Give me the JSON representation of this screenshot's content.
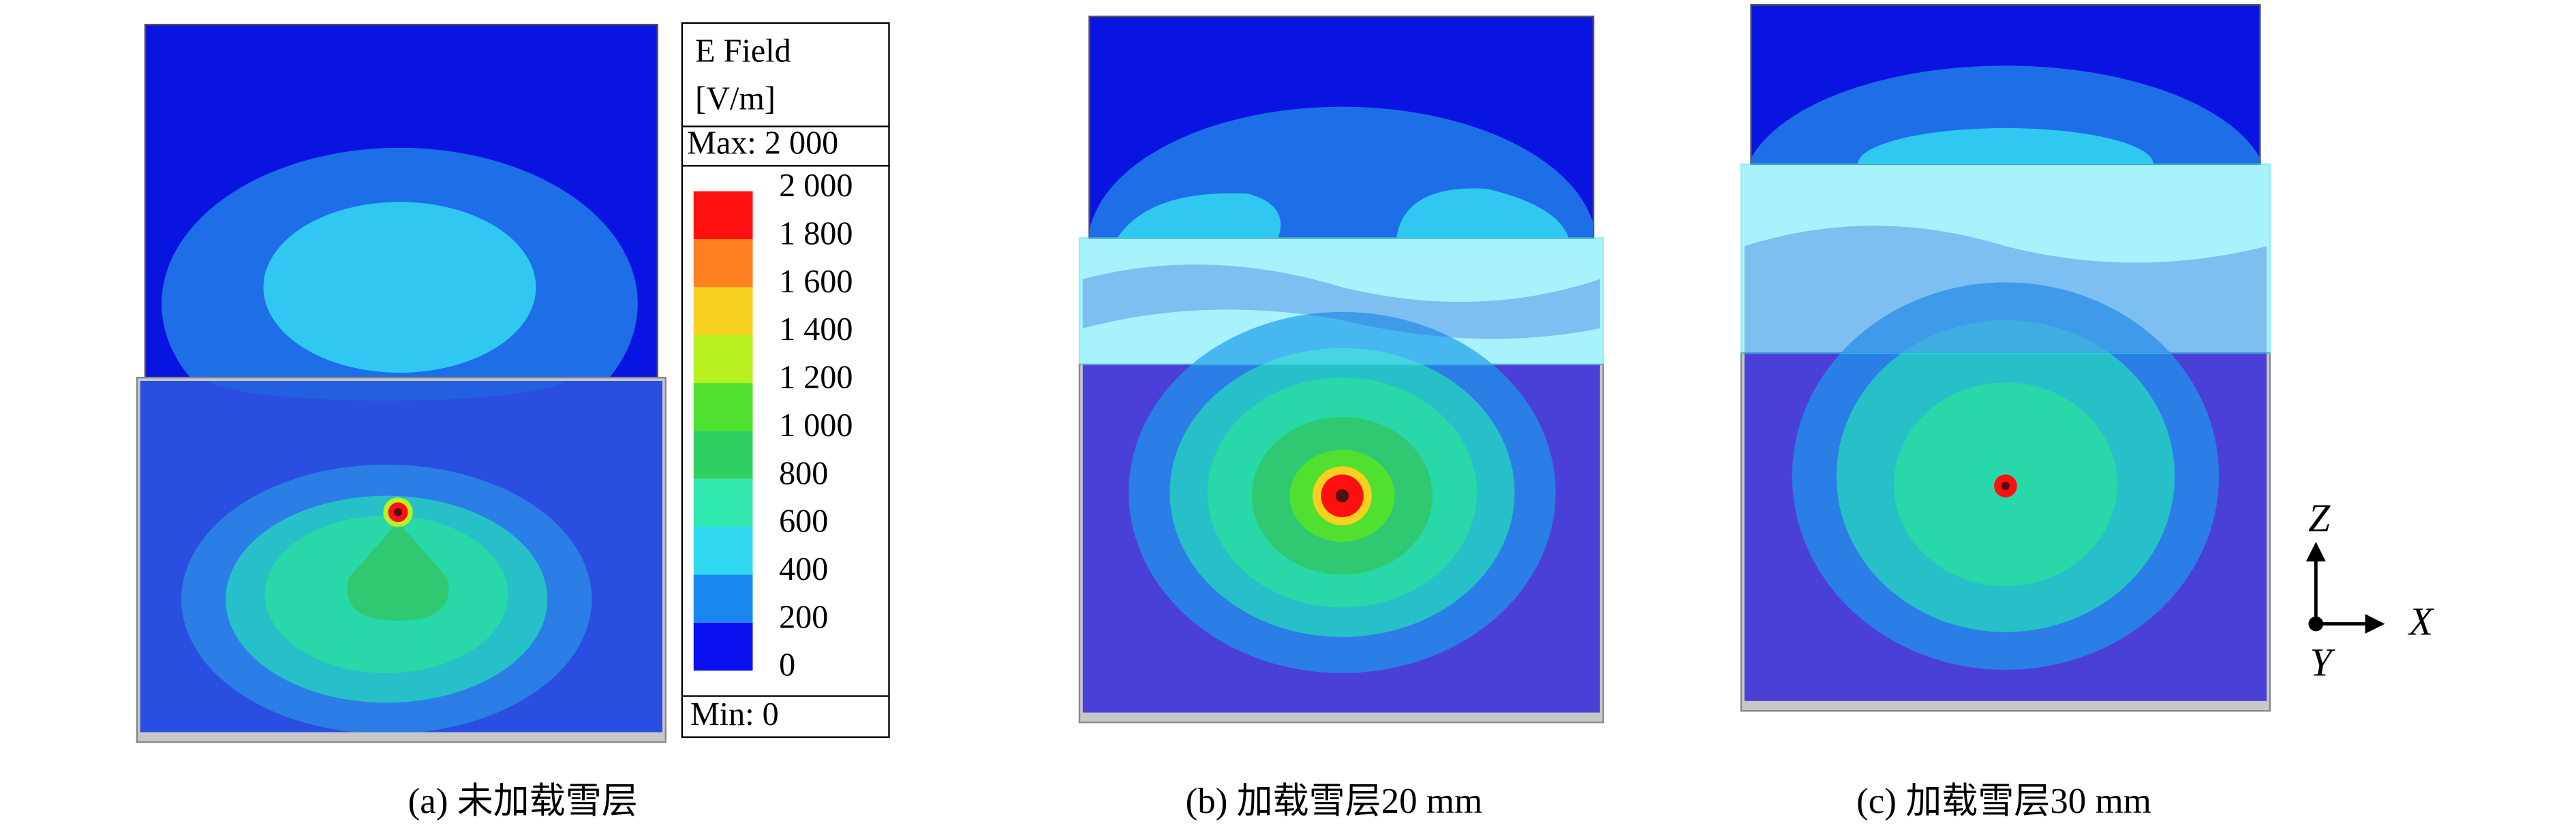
{
  "legend": {
    "title": "E Field",
    "unit": "[V/m]",
    "max": "Max: 2 000",
    "min": "Min: 0",
    "labels": [
      "2 000",
      "1 800",
      "1 600",
      "1 400",
      "1 200",
      "1 000",
      "800",
      "600",
      "400",
      "200",
      "0"
    ],
    "colors": [
      "#ff1010",
      "#ff8020",
      "#f8d020",
      "#b8f020",
      "#50e030",
      "#30d060",
      "#30e8b0",
      "#30d8f0",
      "#1888f0",
      "#0a10f0"
    ]
  },
  "panels": [
    {
      "caption": "(a) 未加载雪层"
    },
    {
      "caption": "(b) 加载雪层20 mm"
    },
    {
      "caption": "(c) 加载雪层30 mm"
    }
  ],
  "axes": {
    "z": "Z",
    "x": "X",
    "y": "Y"
  }
}
